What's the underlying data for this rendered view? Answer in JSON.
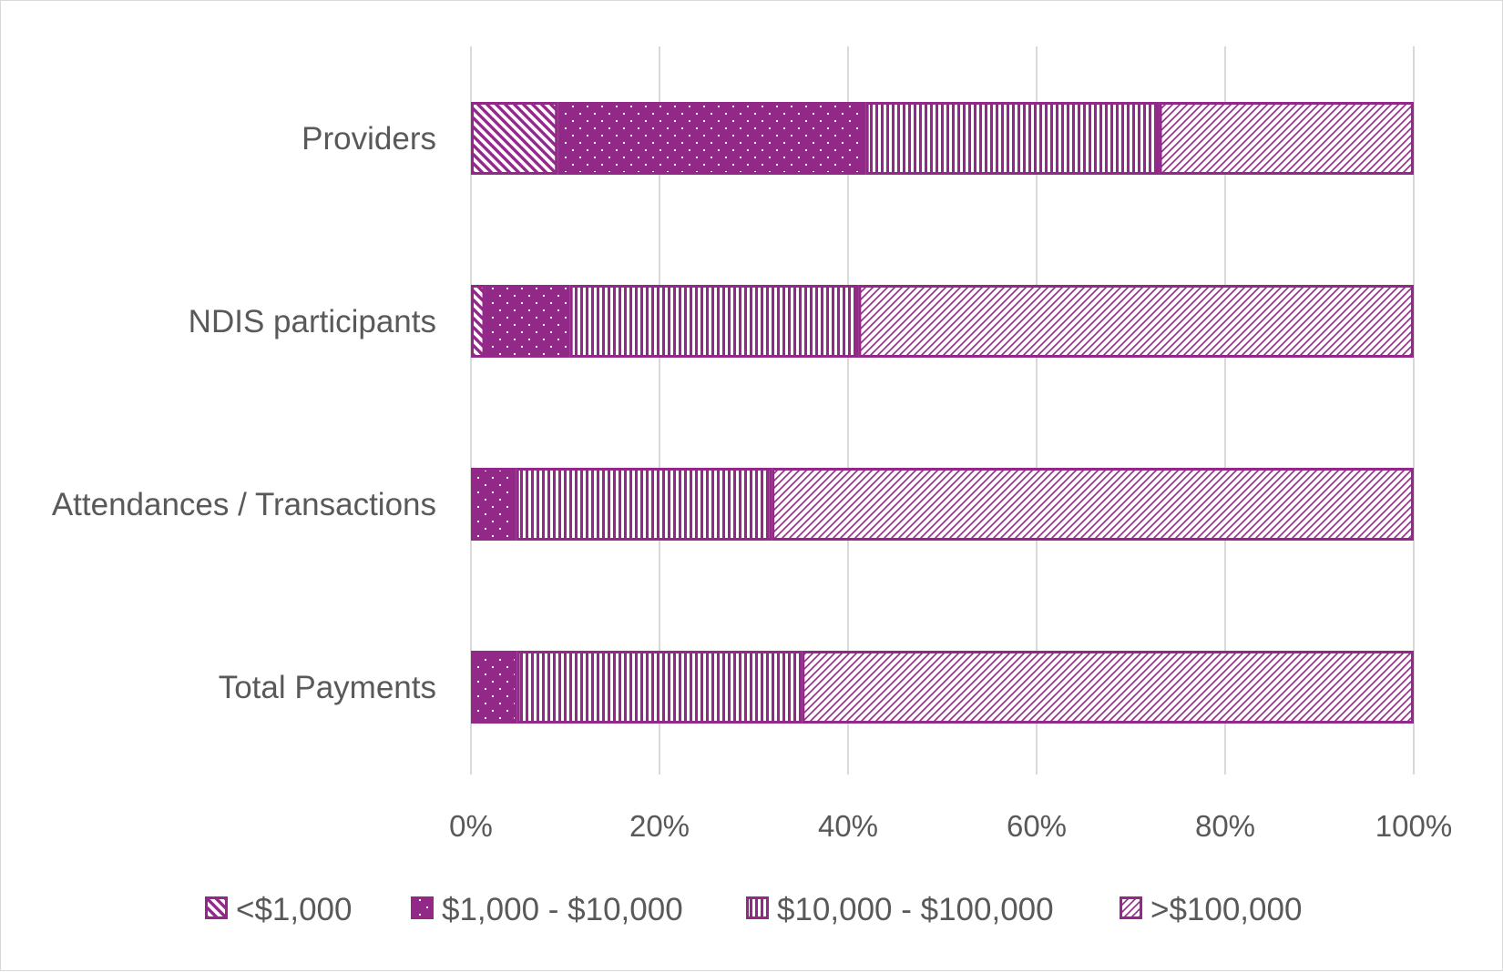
{
  "chart_data": {
    "type": "bar",
    "orientation": "horizontal",
    "stacked": "percent",
    "title": "",
    "xlabel": "",
    "ylabel": "",
    "xlim": [
      0,
      100
    ],
    "grid": true,
    "legend_position": "bottom",
    "categories": [
      "Providers",
      "NDIS participants",
      "Attendances / Transactions",
      "Total Payments"
    ],
    "x_ticks": [
      "0%",
      "20%",
      "40%",
      "60%",
      "80%",
      "100%"
    ],
    "series": [
      {
        "name": "<$1,000",
        "pattern": "wide-downward-diagonal",
        "values": [
          9.2,
          1.5,
          0.2,
          0.1
        ]
      },
      {
        "name": "$1,000 - $10,000",
        "pattern": "dotted",
        "values": [
          32.7,
          9.0,
          4.6,
          4.8
        ]
      },
      {
        "name": "$10,000 - $100,000",
        "pattern": "vertical-lines",
        "values": [
          31.1,
          30.6,
          27.1,
          30.2
        ]
      },
      {
        "name": ">$100,000",
        "pattern": "upward-diagonal",
        "values": [
          27.0,
          58.9,
          68.1,
          64.9
        ]
      }
    ],
    "colors": {
      "bar": "#922888",
      "outline": "#922888",
      "background": "#ffffff",
      "gridline": "#d9d9d9",
      "text": "#595959"
    }
  }
}
